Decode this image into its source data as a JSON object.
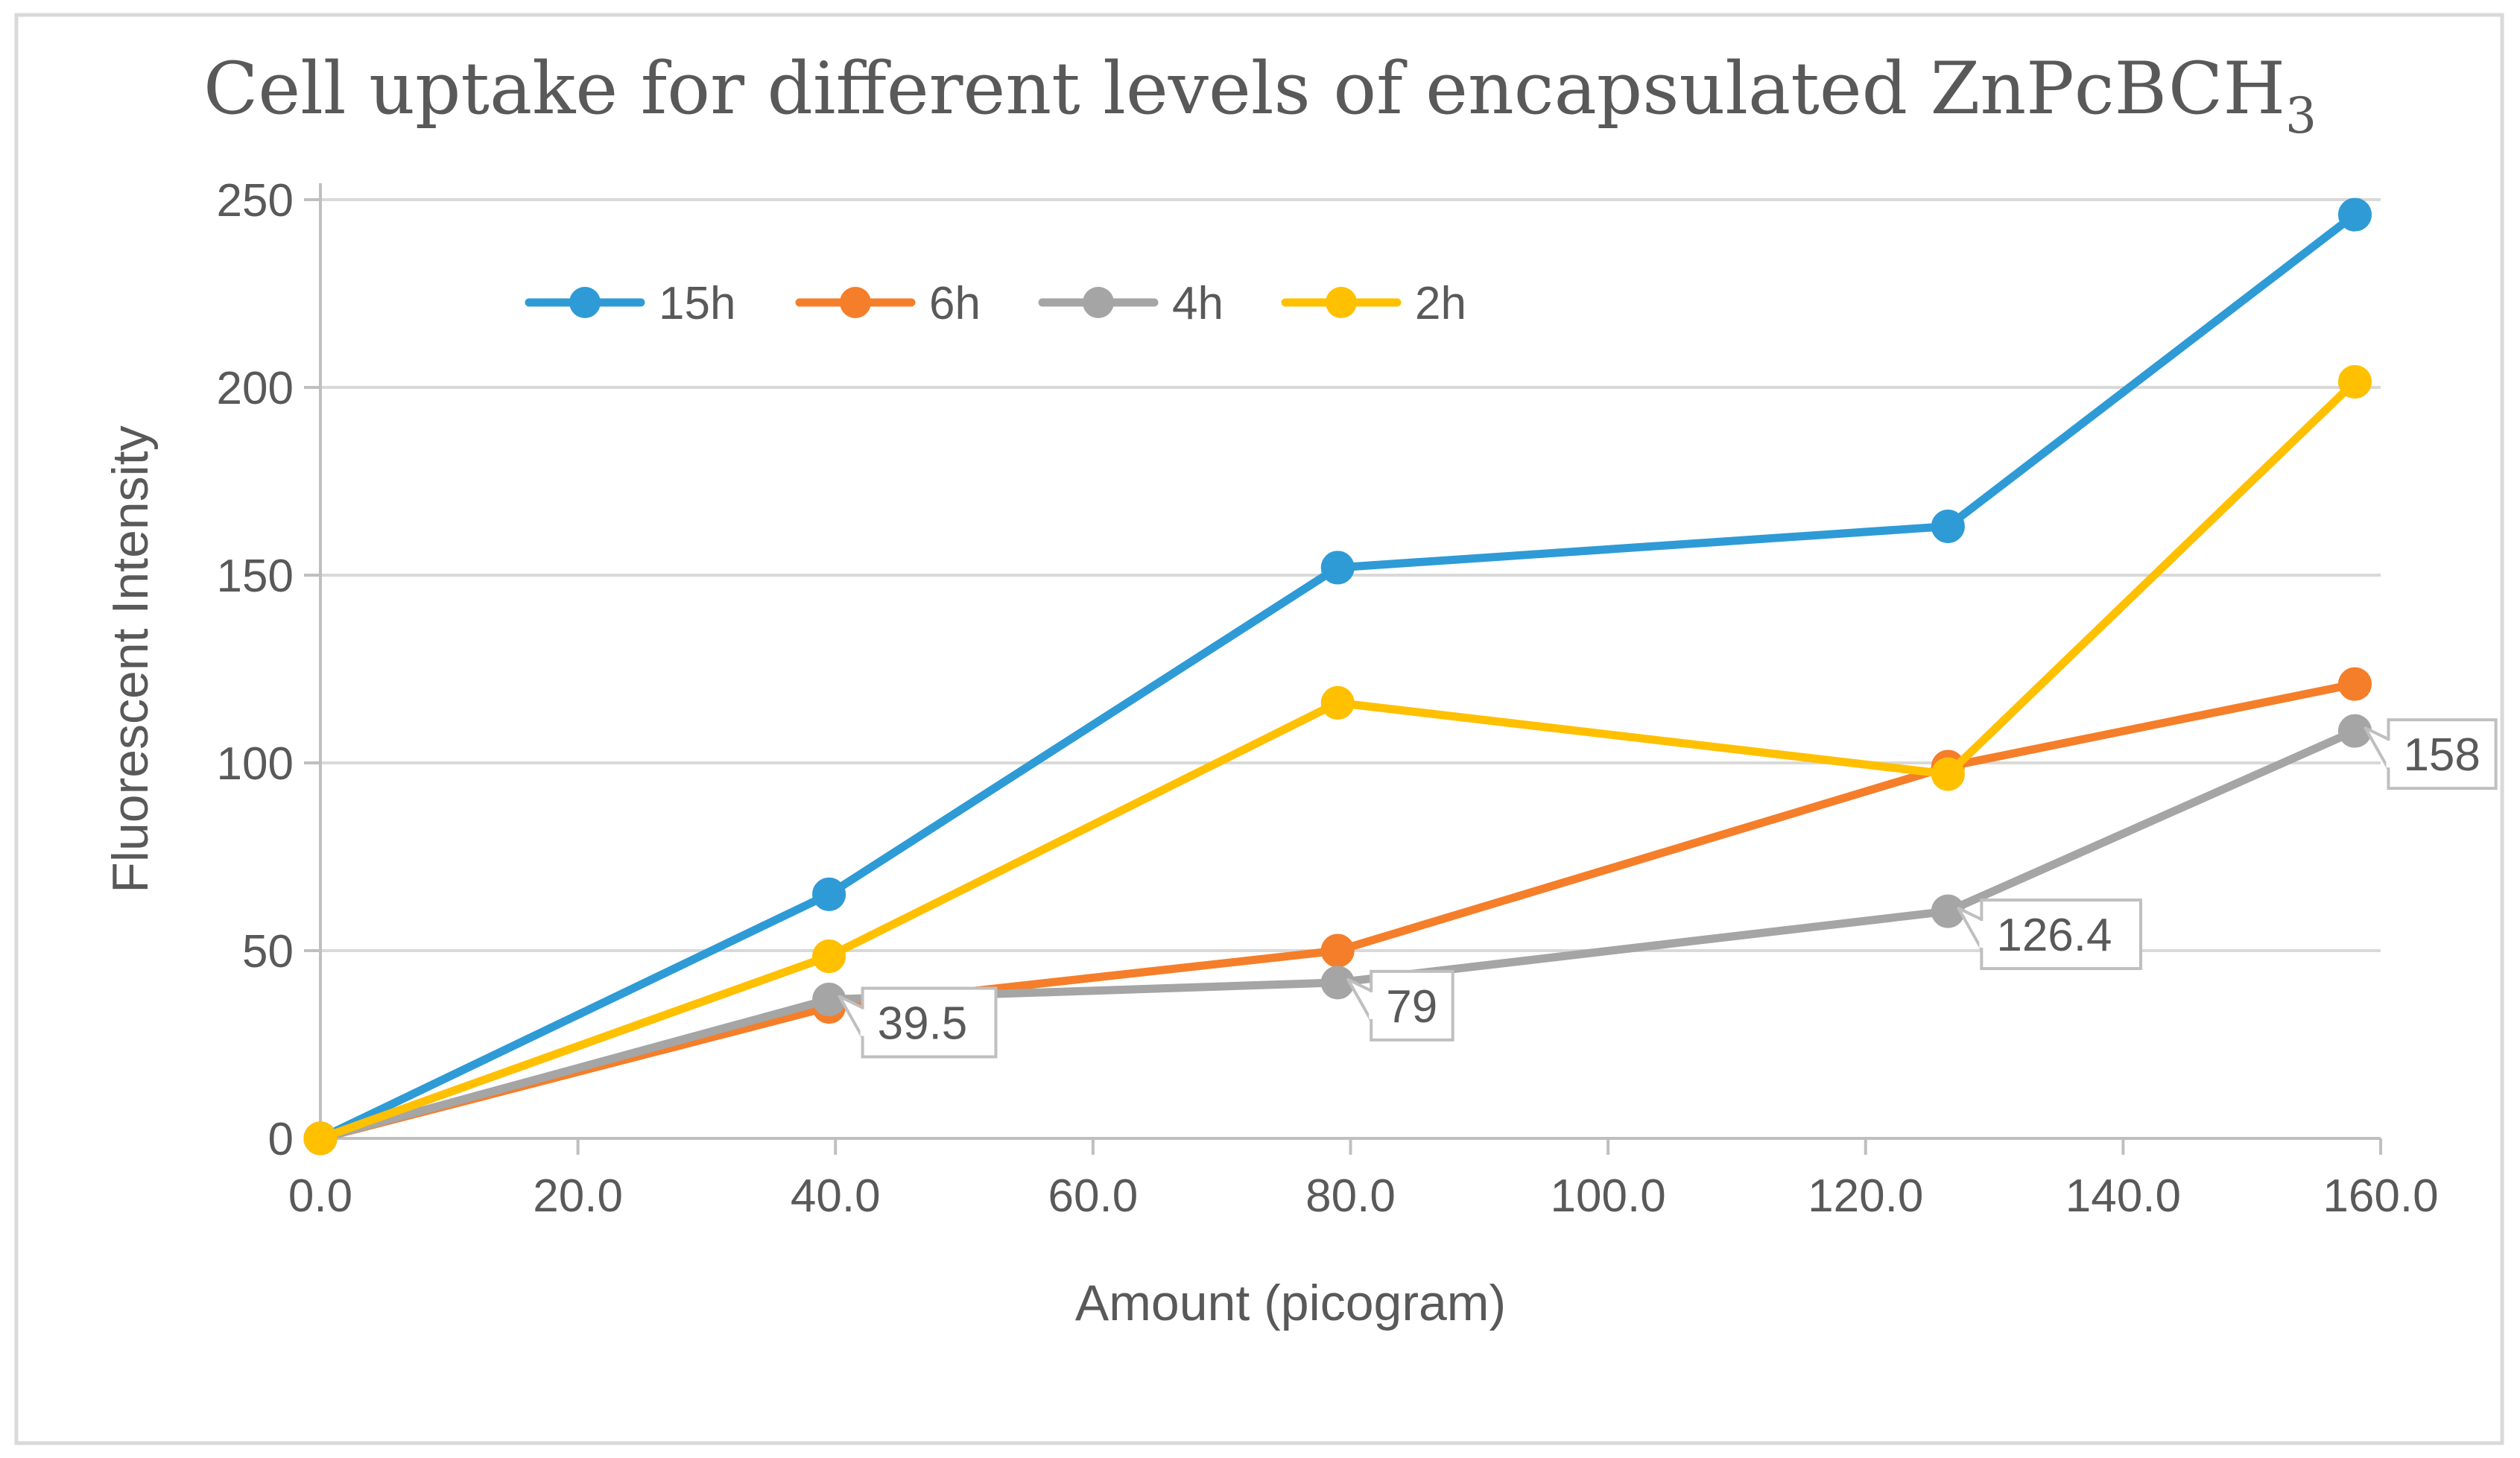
{
  "chart_data": {
    "type": "line",
    "title": "Cell uptake for different levels of encapsulated ZnPcBCH",
    "title_subscript": "3",
    "xlabel": "Amount (picogram)",
    "ylabel": "Fluorescent Intensity",
    "xlim": [
      0,
      160
    ],
    "ylim": [
      0,
      250
    ],
    "x_ticks": [
      0,
      20,
      40,
      60,
      80,
      100,
      120,
      140,
      160
    ],
    "x_tick_labels": [
      "0.0",
      "20.0",
      "40.0",
      "60.0",
      "80.0",
      "100.0",
      "120.0",
      "140.0",
      "160.0"
    ],
    "y_ticks": [
      0,
      50,
      100,
      150,
      200,
      250
    ],
    "y_tick_labels": [
      "0",
      "50",
      "100",
      "150",
      "200",
      "250"
    ],
    "grid": "horizontal",
    "legend_position": "top-left",
    "x": [
      0,
      39.5,
      79,
      126.4,
      158
    ],
    "series": [
      {
        "name": "15h",
        "color": "#2E9BD6",
        "values": [
          0,
          65,
          152,
          163,
          246
        ]
      },
      {
        "name": "6h",
        "color": "#F57E2A",
        "values": [
          0,
          35,
          50,
          99,
          121
        ]
      },
      {
        "name": "4h",
        "color": "#A5A5A5",
        "values": [
          0,
          37,
          41.5,
          60.5,
          108.5
        ]
      },
      {
        "name": "2h",
        "color": "#FFC000",
        "values": [
          0,
          48.5,
          116,
          97,
          201.5
        ]
      }
    ],
    "annotations": [
      {
        "text": "39.5",
        "series": "4h",
        "point_index": 1
      },
      {
        "text": "79",
        "series": "4h",
        "point_index": 2
      },
      {
        "text": "126.4",
        "series": "4h",
        "point_index": 3
      },
      {
        "text": "158",
        "series": "4h",
        "point_index": 4
      }
    ]
  }
}
